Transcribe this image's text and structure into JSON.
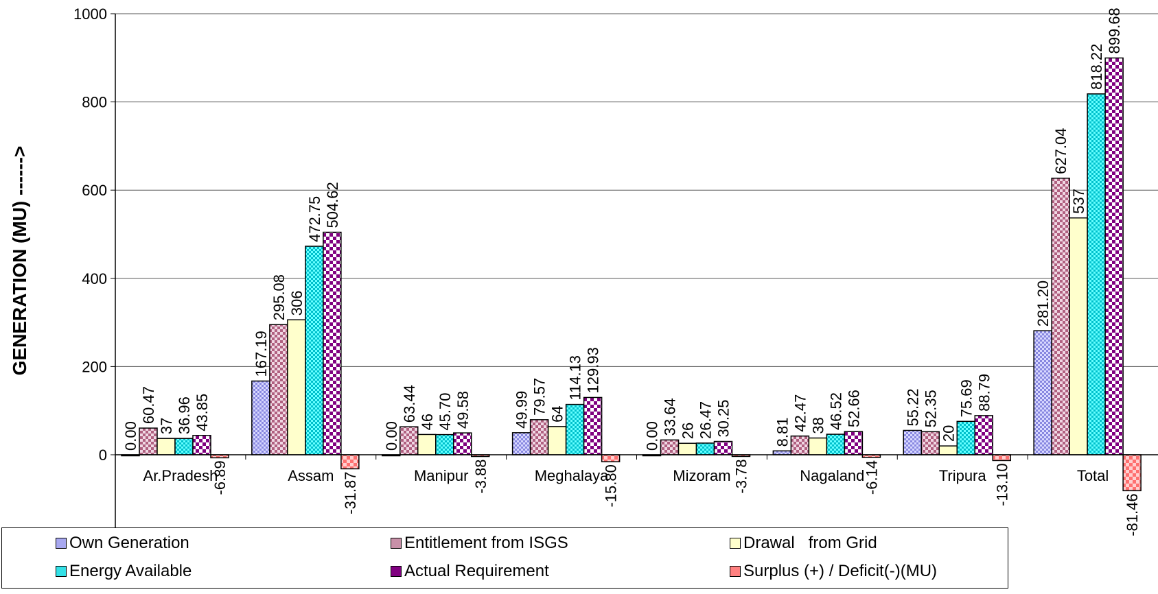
{
  "chart_data": {
    "type": "bar",
    "title": "",
    "xlabel": "",
    "ylabel": "GENERATION (MU) ------>",
    "ylim": [
      -160,
      1000
    ],
    "y_ticks": [
      0,
      200,
      400,
      600,
      800,
      1000
    ],
    "grid": true,
    "legend_position": "bottom",
    "categories": [
      "Ar.Pradesh",
      "Assam",
      "Manipur",
      "Meghalaya",
      "Mizoram",
      "Nagaland",
      "Tripura",
      "Total"
    ],
    "series": [
      {
        "name": "Own Generation",
        "color": "#a8a8f0",
        "values": [
          0.0,
          167.19,
          0.0,
          49.99,
          0.0,
          8.81,
          55.22,
          281.2
        ],
        "labels": [
          "0.00",
          "167.19",
          "0.00",
          "49.99",
          "0.00",
          "8.81",
          "55.22",
          "281.20"
        ]
      },
      {
        "name": "Entitlement from ISGS",
        "color": "#c890a8",
        "values": [
          60.47,
          295.08,
          63.44,
          79.57,
          33.64,
          42.47,
          52.35,
          627.04
        ],
        "labels": [
          "60.47",
          "295.08",
          "63.44",
          "79.57",
          "33.64",
          "42.47",
          "52.35",
          "627.04"
        ]
      },
      {
        "name": "Drawal   from Grid",
        "color": "#ffffcc",
        "values": [
          37,
          306,
          46,
          64,
          26,
          38,
          20,
          537
        ],
        "labels": [
          "37",
          "306",
          "46",
          "64",
          "26",
          "38",
          "20",
          "537"
        ]
      },
      {
        "name": "Energy Available",
        "color": "#33e0e6",
        "values": [
          36.96,
          472.75,
          45.7,
          114.13,
          26.47,
          46.52,
          75.69,
          818.22
        ],
        "labels": [
          "36.96",
          "472.75",
          "45.70",
          "114.13",
          "26.47",
          "46.52",
          "75.69",
          "818.22"
        ]
      },
      {
        "name": "Actual Requirement",
        "color": "#800080",
        "values": [
          43.85,
          504.62,
          49.58,
          129.93,
          30.25,
          52.66,
          88.79,
          899.68
        ],
        "labels": [
          "43.85",
          "504.62",
          "49.58",
          "129.93",
          "30.25",
          "52.66",
          "88.79",
          "899.68"
        ]
      },
      {
        "name": "Surplus (+) / Deficit(-)(MU)",
        "color": "#ff8080",
        "values": [
          -6.89,
          -31.87,
          -3.88,
          -15.8,
          -3.78,
          -6.14,
          -13.1,
          -81.46
        ],
        "labels": [
          "-6.89",
          "-31.87",
          "-3.88",
          "-15.80",
          "-3.78",
          "-6.14",
          "-13.10",
          "-81.46"
        ]
      }
    ]
  }
}
